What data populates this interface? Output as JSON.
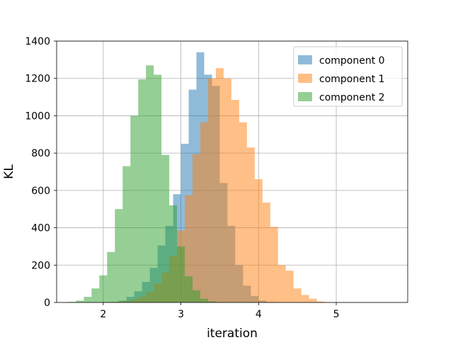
{
  "chart_data": {
    "type": "histogram",
    "title": "",
    "xlabel": "iteration",
    "ylabel": "KL",
    "xlim": [
      1.4,
      5.92
    ],
    "ylim": [
      0,
      1400
    ],
    "xticks": [
      2,
      3,
      4,
      5
    ],
    "yticks": [
      0,
      200,
      400,
      600,
      800,
      1000,
      1200,
      1400
    ],
    "grid": true,
    "legend_position": "top-right",
    "alpha": 0.5,
    "series": [
      {
        "name": "component 0",
        "color": "#1f77b4",
        "bin_start": 2.1,
        "bin_width": 0.1,
        "counts": [
          3,
          10,
          30,
          60,
          110,
          185,
          305,
          410,
          580,
          850,
          1140,
          1340,
          1220,
          1160,
          640,
          410,
          200,
          90,
          35,
          10,
          3
        ]
      },
      {
        "name": "component 1",
        "color": "#ff7f0e",
        "bin_start": 2.05,
        "bin_width": 0.1,
        "counts": [
          2,
          4,
          8,
          15,
          30,
          55,
          100,
          160,
          250,
          385,
          575,
          795,
          965,
          1200,
          1255,
          1200,
          1085,
          965,
          830,
          660,
          535,
          405,
          200,
          170,
          75,
          40,
          20,
          5
        ]
      },
      {
        "name": "component 2",
        "color": "#2ca02c",
        "bin_start": 1.55,
        "bin_width": 0.1,
        "counts": [
          3,
          10,
          30,
          75,
          145,
          270,
          500,
          730,
          1000,
          1195,
          1270,
          1220,
          790,
          520,
          300,
          140,
          65,
          20,
          6,
          2
        ]
      }
    ]
  }
}
